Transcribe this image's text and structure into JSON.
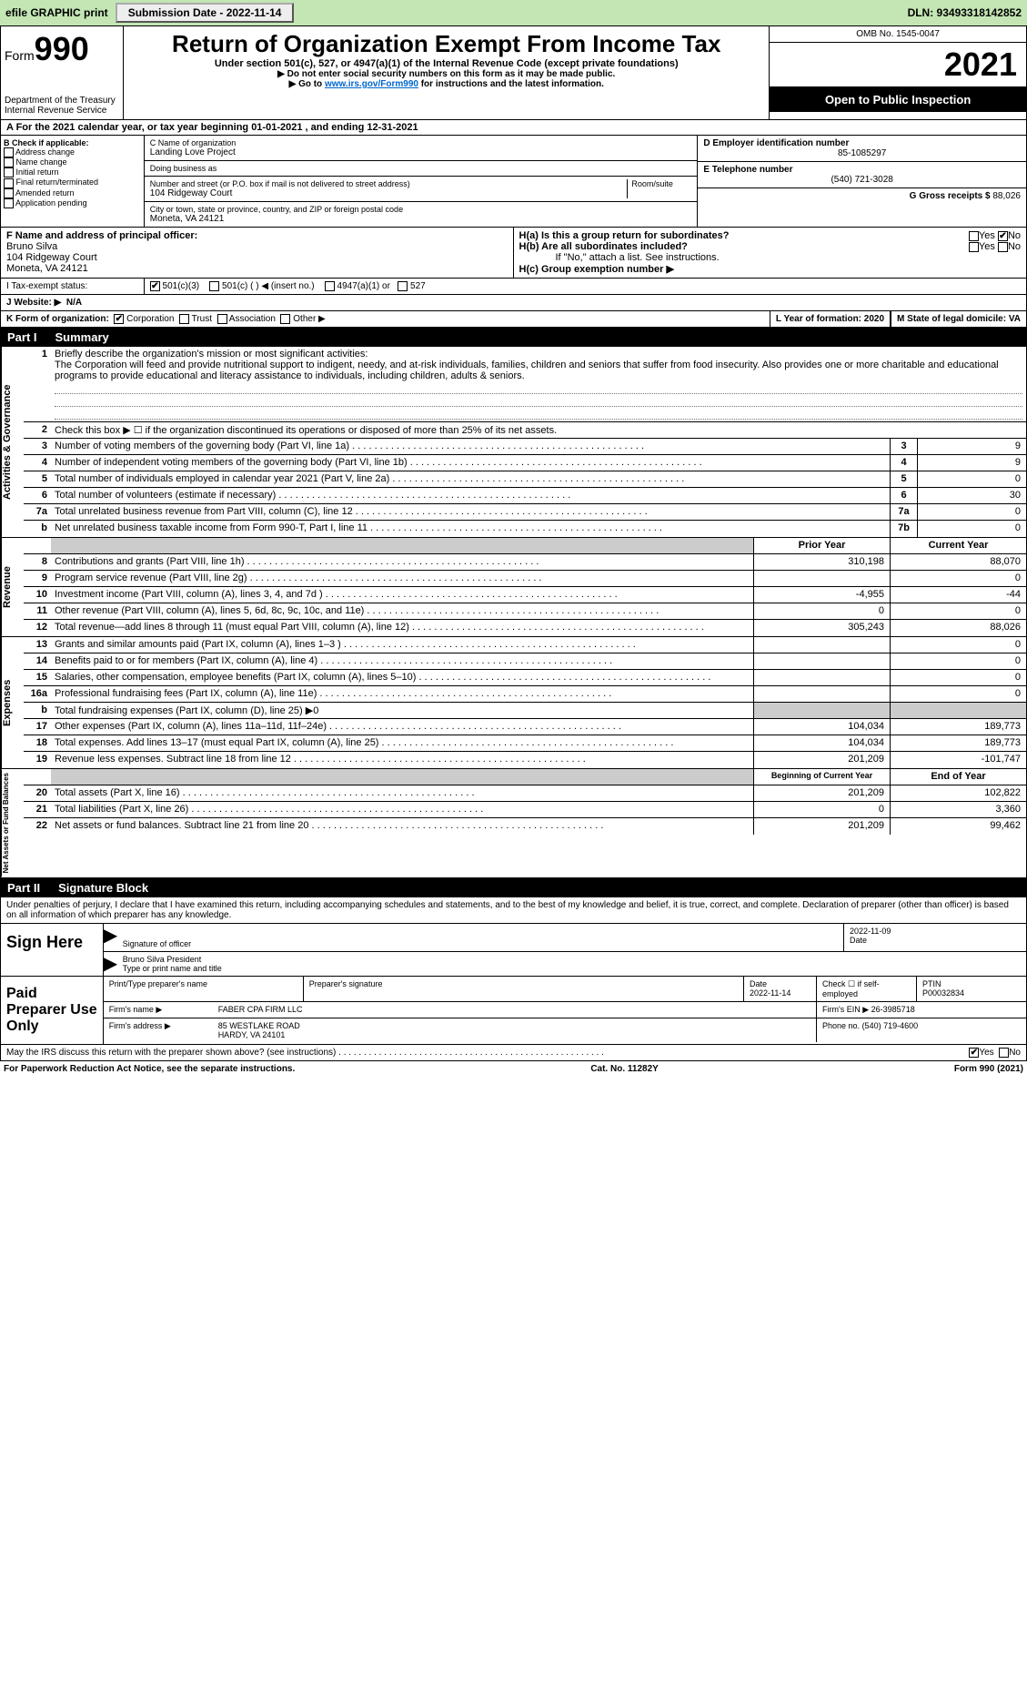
{
  "topbar": {
    "efile": "efile GRAPHIC print",
    "submission_label": "Submission Date - 2022-11-14",
    "dln": "DLN: 93493318142852"
  },
  "header": {
    "form_prefix": "Form",
    "form_number": "990",
    "title": "Return of Organization Exempt From Income Tax",
    "subtitle": "Under section 501(c), 527, or 4947(a)(1) of the Internal Revenue Code (except private foundations)",
    "note1": "▶ Do not enter social security numbers on this form as it may be made public.",
    "note2_prefix": "▶ Go to ",
    "note2_link": "www.irs.gov/Form990",
    "note2_suffix": " for instructions and the latest information.",
    "dept": "Department of the Treasury",
    "irs": "Internal Revenue Service",
    "omb": "OMB No. 1545-0047",
    "tax_year": "2021",
    "inspection": "Open to Public Inspection"
  },
  "section_a": {
    "text": "A For the 2021 calendar year, or tax year beginning 01-01-2021    , and ending 12-31-2021"
  },
  "section_b": {
    "label": "B Check if applicable:",
    "items": [
      "Address change",
      "Name change",
      "Initial return",
      "Final return/terminated",
      "Amended return",
      "Application pending"
    ]
  },
  "section_c": {
    "name_label": "C Name of organization",
    "org_name": "Landing Love Project",
    "dba_label": "Doing business as",
    "dba": "",
    "addr_label": "Number and street (or P.O. box if mail is not delivered to street address)",
    "room_label": "Room/suite",
    "street": "104 Ridgeway Court",
    "city_label": "City or town, state or province, country, and ZIP or foreign postal code",
    "city": "Moneta, VA  24121"
  },
  "section_d": {
    "label": "D Employer identification number",
    "value": "85-1085297"
  },
  "section_e": {
    "label": "E Telephone number",
    "value": "(540) 721-3028"
  },
  "section_g": {
    "label": "G Gross receipts $",
    "value": "88,026"
  },
  "section_f": {
    "label": "F Name and address of principal officer:",
    "name": "Bruno Silva",
    "street": "104 Ridgeway Court",
    "city": "Moneta, VA  24121"
  },
  "section_h": {
    "ha": "H(a)  Is this a group return for subordinates?",
    "hb": "H(b)  Are all subordinates included?",
    "hb_note": "If \"No,\" attach a list. See instructions.",
    "hc": "H(c)  Group exemption number ▶",
    "ha_no_checked": true
  },
  "tax_exempt": {
    "label": "I   Tax-exempt status:",
    "c501c3": true,
    "opts": [
      "501(c)(3)",
      "501(c) (  ) ◀ (insert no.)",
      "4947(a)(1) or",
      "527"
    ]
  },
  "website": {
    "label": "J   Website: ▶",
    "value": "N/A"
  },
  "form_org": {
    "k": "K Form of organization:",
    "opts": [
      "Corporation",
      "Trust",
      "Association",
      "Other ▶"
    ],
    "corp_checked": true,
    "l": "L Year of formation: 2020",
    "m": "M State of legal domicile: VA"
  },
  "part1": {
    "tag": "Part I",
    "title": "Summary"
  },
  "brief": {
    "num": "1",
    "label": "Briefly describe the organization's mission or most significant activities:",
    "text": "The Corporation will feed and provide nutritional support to indigent, needy, and at-risk individuals, families, children and seniors that suffer from food insecurity. Also provides one or more charitable and educational programs to provide educational and literacy assistance to individuals, including children, adults & seniors."
  },
  "gov_lines": [
    {
      "n": "2",
      "t": "Check this box ▶ ☐ if the organization discontinued its operations or disposed of more than 25% of its net assets."
    },
    {
      "n": "3",
      "t": "Number of voting members of the governing body (Part VI, line 1a)",
      "box": "3",
      "v": "9"
    },
    {
      "n": "4",
      "t": "Number of independent voting members of the governing body (Part VI, line 1b)",
      "box": "4",
      "v": "9"
    },
    {
      "n": "5",
      "t": "Total number of individuals employed in calendar year 2021 (Part V, line 2a)",
      "box": "5",
      "v": "0"
    },
    {
      "n": "6",
      "t": "Total number of volunteers (estimate if necessary)",
      "box": "6",
      "v": "30"
    },
    {
      "n": "7a",
      "t": "Total unrelated business revenue from Part VIII, column (C), line 12",
      "box": "7a",
      "v": "0"
    },
    {
      "n": "b",
      "t": "Net unrelated business taxable income from Form 990-T, Part I, line 11",
      "box": "7b",
      "v": "0"
    }
  ],
  "rev_hdr": {
    "prior": "Prior Year",
    "current": "Current Year"
  },
  "revenue_side": "Revenue",
  "revenue": [
    {
      "n": "8",
      "t": "Contributions and grants (Part VIII, line 1h)",
      "p": "310,198",
      "c": "88,070"
    },
    {
      "n": "9",
      "t": "Program service revenue (Part VIII, line 2g)",
      "p": "",
      "c": "0"
    },
    {
      "n": "10",
      "t": "Investment income (Part VIII, column (A), lines 3, 4, and 7d )",
      "p": "-4,955",
      "c": "-44"
    },
    {
      "n": "11",
      "t": "Other revenue (Part VIII, column (A), lines 5, 6d, 8c, 9c, 10c, and 11e)",
      "p": "0",
      "c": "0"
    },
    {
      "n": "12",
      "t": "Total revenue—add lines 8 through 11 (must equal Part VIII, column (A), line 12)",
      "p": "305,243",
      "c": "88,026"
    }
  ],
  "expenses_side": "Expenses",
  "expenses": [
    {
      "n": "13",
      "t": "Grants and similar amounts paid (Part IX, column (A), lines 1–3 )",
      "p": "",
      "c": "0"
    },
    {
      "n": "14",
      "t": "Benefits paid to or for members (Part IX, column (A), line 4)",
      "p": "",
      "c": "0"
    },
    {
      "n": "15",
      "t": "Salaries, other compensation, employee benefits (Part IX, column (A), lines 5–10)",
      "p": "",
      "c": "0"
    },
    {
      "n": "16a",
      "t": "Professional fundraising fees (Part IX, column (A), line 11e)",
      "p": "",
      "c": "0"
    },
    {
      "n": "b",
      "t": "Total fundraising expenses (Part IX, column (D), line 25) ▶0",
      "gray": true
    },
    {
      "n": "17",
      "t": "Other expenses (Part IX, column (A), lines 11a–11d, 11f–24e)",
      "p": "104,034",
      "c": "189,773"
    },
    {
      "n": "18",
      "t": "Total expenses. Add lines 13–17 (must equal Part IX, column (A), line 25)",
      "p": "104,034",
      "c": "189,773"
    },
    {
      "n": "19",
      "t": "Revenue less expenses. Subtract line 18 from line 12",
      "p": "201,209",
      "c": "-101,747"
    }
  ],
  "net_side": "Net Assets or Fund Balances",
  "net_hdr": {
    "begin": "Beginning of Current Year",
    "end": "End of Year"
  },
  "netassets": [
    {
      "n": "20",
      "t": "Total assets (Part X, line 16)",
      "p": "201,209",
      "c": "102,822"
    },
    {
      "n": "21",
      "t": "Total liabilities (Part X, line 26)",
      "p": "0",
      "c": "3,360"
    },
    {
      "n": "22",
      "t": "Net assets or fund balances. Subtract line 21 from line 20",
      "p": "201,209",
      "c": "99,462"
    }
  ],
  "part2": {
    "tag": "Part II",
    "title": "Signature Block"
  },
  "penalty": "Under penalties of perjury, I declare that I have examined this return, including accompanying schedules and statements, and to the best of my knowledge and belief, it is true, correct, and complete. Declaration of preparer (other than officer) is based on all information of which preparer has any knowledge.",
  "sign": {
    "left": "Sign Here",
    "sig_of_officer": "Signature of officer",
    "date": "Date",
    "date_val": "2022-11-09",
    "printed": "Bruno Silva  President",
    "printed_label": "Type or print name and title"
  },
  "paid": {
    "left": "Paid Preparer Use Only",
    "name_label": "Print/Type preparer's name",
    "sig_label": "Preparer's signature",
    "date_label": "Date",
    "date": "2022-11-14",
    "check_label": "Check ☐ if self-employed",
    "ptin_label": "PTIN",
    "ptin": "P00032834",
    "firm_name_label": "Firm's name    ▶",
    "firm_name": "FABER CPA FIRM LLC",
    "firm_ein_label": "Firm's EIN ▶",
    "firm_ein": "26-3985718",
    "firm_addr_label": "Firm's address ▶",
    "firm_addr1": "85 WESTLAKE ROAD",
    "firm_addr2": "HARDY, VA  24101",
    "phone_label": "Phone no.",
    "phone": "(540) 719-4600"
  },
  "may_irs": "May the IRS discuss this return with the preparer shown above? (see instructions)",
  "footer": {
    "left": "For Paperwork Reduction Act Notice, see the separate instructions.",
    "mid": "Cat. No. 11282Y",
    "right": "Form 990 (2021)"
  },
  "gov_side": "Activities & Governance"
}
